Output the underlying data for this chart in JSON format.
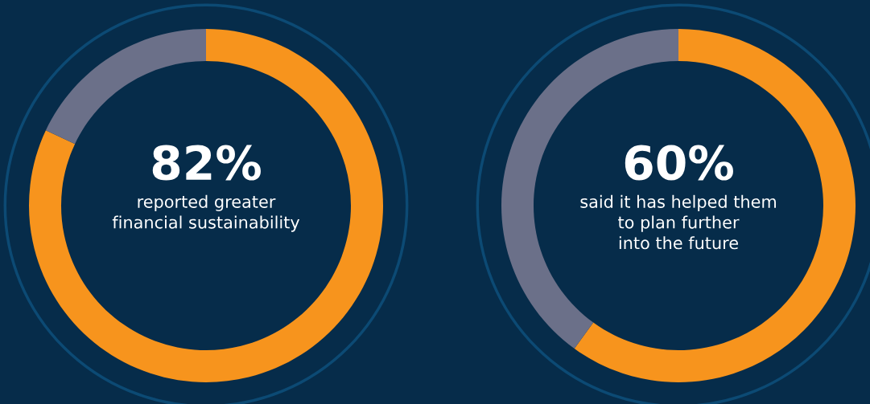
{
  "chart_data": [
    {
      "type": "donut",
      "categories": [
        null,
        null
      ],
      "values": [
        82,
        18
      ],
      "colors": [
        "#f7941d",
        "#6b7089"
      ],
      "value_labels": [
        "82%",
        null
      ],
      "annotations": [
        "reported greater\nfinancial sustainability"
      ]
    },
    {
      "type": "donut",
      "categories": [
        null,
        null
      ],
      "values": [
        60,
        40
      ],
      "colors": [
        "#f7941d",
        "#6b7089"
      ],
      "value_labels": [
        "60%",
        null
      ],
      "annotations": [
        "said it has helped them\nto plan further\ninto the future"
      ]
    }
  ]
}
